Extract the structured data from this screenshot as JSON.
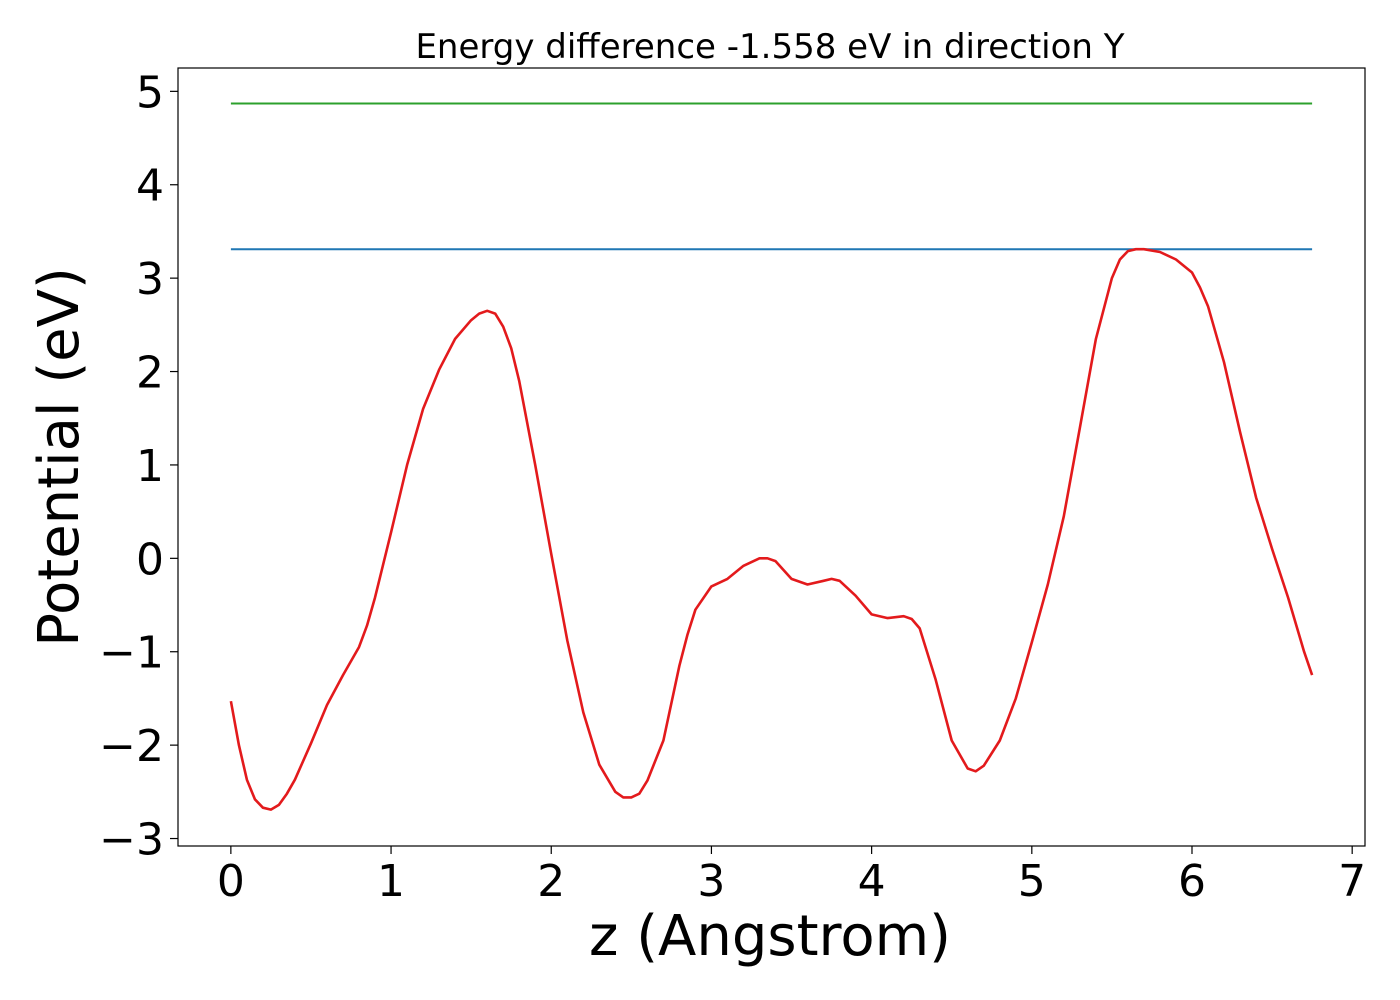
{
  "chart_data": {
    "type": "line",
    "title": "Energy difference -1.558 eV in direction Y",
    "xlabel": "z (Angstrom)",
    "ylabel": "Potential (eV)",
    "xlim": [
      -0.33,
      7.08
    ],
    "ylim": [
      -3.08,
      5.25
    ],
    "xticks": [
      0,
      1,
      2,
      3,
      4,
      5,
      6,
      7
    ],
    "xtick_labels": [
      "0",
      "1",
      "2",
      "3",
      "4",
      "5",
      "6",
      "7"
    ],
    "yticks": [
      -3,
      -2,
      -1,
      0,
      1,
      2,
      3,
      4,
      5
    ],
    "ytick_labels": [
      "−3",
      "−2",
      "−1",
      "0",
      "1",
      "2",
      "3",
      "4",
      "5"
    ],
    "grid": false,
    "legend": "none",
    "series": [
      {
        "color": "#2ca02c",
        "x": [
          0,
          6.75
        ],
        "y": [
          4.87,
          4.87
        ]
      },
      {
        "color": "#1f77b4",
        "x": [
          0,
          6.75
        ],
        "y": [
          3.31,
          3.31
        ]
      },
      {
        "color": "#e31a1c",
        "x": [
          0,
          0.05,
          0.1,
          0.15,
          0.2,
          0.25,
          0.3,
          0.35,
          0.4,
          0.5,
          0.6,
          0.7,
          0.75,
          0.8,
          0.85,
          0.9,
          1.0,
          1.1,
          1.2,
          1.3,
          1.4,
          1.5,
          1.55,
          1.6,
          1.65,
          1.7,
          1.75,
          1.8,
          1.9,
          2.0,
          2.1,
          2.2,
          2.3,
          2.4,
          2.45,
          2.5,
          2.55,
          2.6,
          2.7,
          2.8,
          2.85,
          2.9,
          3.0,
          3.1,
          3.2,
          3.3,
          3.35,
          3.4,
          3.5,
          3.6,
          3.7,
          3.75,
          3.8,
          3.9,
          4.0,
          4.1,
          4.2,
          4.25,
          4.3,
          4.4,
          4.5,
          4.6,
          4.65,
          4.7,
          4.8,
          4.9,
          5.0,
          5.1,
          5.2,
          5.3,
          5.4,
          5.5,
          5.55,
          5.6,
          5.65,
          5.7,
          5.8,
          5.9,
          6.0,
          6.05,
          6.1,
          6.2,
          6.3,
          6.4,
          6.5,
          6.6,
          6.7,
          6.75
        ],
        "y": [
          -1.53,
          -2.0,
          -2.37,
          -2.58,
          -2.67,
          -2.69,
          -2.64,
          -2.52,
          -2.37,
          -1.98,
          -1.57,
          -1.25,
          -1.1,
          -0.95,
          -0.72,
          -0.42,
          0.28,
          1.0,
          1.6,
          2.02,
          2.35,
          2.55,
          2.62,
          2.65,
          2.62,
          2.48,
          2.25,
          1.9,
          1.0,
          0.05,
          -0.88,
          -1.65,
          -2.21,
          -2.5,
          -2.56,
          -2.56,
          -2.52,
          -2.38,
          -1.95,
          -1.15,
          -0.82,
          -0.55,
          -0.3,
          -0.22,
          -0.08,
          0.0,
          0.0,
          -0.03,
          -0.22,
          -0.28,
          -0.24,
          -0.22,
          -0.24,
          -0.4,
          -0.6,
          -0.64,
          -0.62,
          -0.65,
          -0.75,
          -1.3,
          -1.95,
          -2.25,
          -2.28,
          -2.22,
          -1.95,
          -1.5,
          -0.9,
          -0.28,
          0.45,
          1.4,
          2.35,
          3.0,
          3.2,
          3.29,
          3.31,
          3.31,
          3.28,
          3.2,
          3.06,
          2.9,
          2.7,
          2.1,
          1.35,
          0.65,
          0.1,
          -0.42,
          -1.0,
          -1.25
        ]
      }
    ]
  }
}
